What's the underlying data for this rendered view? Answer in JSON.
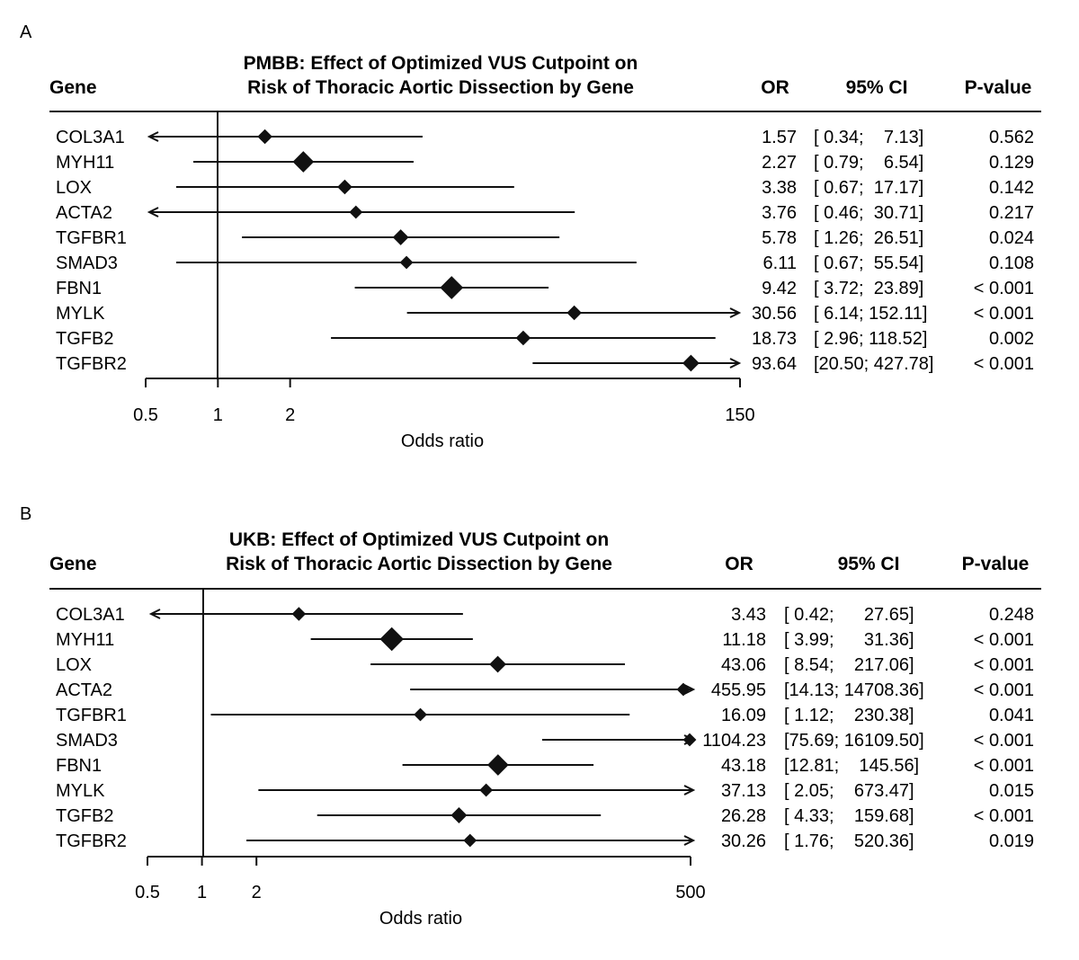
{
  "chart_data": [
    {
      "type": "forest",
      "panel": "A",
      "title_line1": "PMBB: Effect of Optimized VUS Cutpoint on",
      "title_line2": "Risk of Thoracic Aortic Dissection by Gene",
      "headers": {
        "gene": "Gene",
        "or": "OR",
        "ci": "95% CI",
        "p": "P-value"
      },
      "xlabel": "Odds ratio",
      "xscale": "log",
      "xlim": [
        0.5,
        150
      ],
      "ticks": [
        {
          "value": 0.5,
          "label": "0.5"
        },
        {
          "value": 1,
          "label": "1"
        },
        {
          "value": 2,
          "label": "2"
        },
        {
          "value": 150,
          "label": "150"
        }
      ],
      "rows": [
        {
          "gene": "COL3A1",
          "or": 1.57,
          "lo": 0.34,
          "hi": 7.13,
          "weight": 0.3,
          "or_text": "1.57",
          "ci_text": "[ 0.34;    7.13]",
          "p_text": "0.562"
        },
        {
          "gene": "MYH11",
          "or": 2.27,
          "lo": 0.79,
          "hi": 6.54,
          "weight": 0.62,
          "or_text": "2.27",
          "ci_text": "[ 0.79;    6.54]",
          "p_text": "0.129"
        },
        {
          "gene": "LOX",
          "or": 3.38,
          "lo": 0.67,
          "hi": 17.17,
          "weight": 0.3,
          "or_text": "3.38",
          "ci_text": "[ 0.67;  17.17]",
          "p_text": "0.142"
        },
        {
          "gene": "ACTA2",
          "or": 3.76,
          "lo": 0.46,
          "hi": 30.71,
          "weight": 0.22,
          "or_text": "3.76",
          "ci_text": "[ 0.46;  30.71]",
          "p_text": "0.217"
        },
        {
          "gene": "TGFBR1",
          "or": 5.78,
          "lo": 1.26,
          "hi": 26.51,
          "weight": 0.35,
          "or_text": "5.78",
          "ci_text": "[ 1.26;  26.51]",
          "p_text": "0.024"
        },
        {
          "gene": "SMAD3",
          "or": 6.11,
          "lo": 0.67,
          "hi": 55.54,
          "weight": 0.22,
          "or_text": "6.11",
          "ci_text": "[ 0.67;  55.54]",
          "p_text": "0.108"
        },
        {
          "gene": "FBN1",
          "or": 9.42,
          "lo": 3.72,
          "hi": 23.89,
          "weight": 0.72,
          "or_text": "9.42",
          "ci_text": "[ 3.72;  23.89]",
          "p_text": "< 0.001"
        },
        {
          "gene": "MYLK",
          "or": 30.56,
          "lo": 6.14,
          "hi": 152.11,
          "weight": 0.3,
          "or_text": "30.56",
          "ci_text": "[ 6.14; 152.11]",
          "p_text": "< 0.001"
        },
        {
          "gene": "TGFB2",
          "or": 18.73,
          "lo": 2.96,
          "hi": 118.52,
          "weight": 0.3,
          "or_text": "18.73",
          "ci_text": "[ 2.96; 118.52]",
          "p_text": "0.002"
        },
        {
          "gene": "TGFBR2",
          "or": 93.64,
          "lo": 20.5,
          "hi": 427.78,
          "weight": 0.4,
          "or_text": "93.64",
          "ci_text": "[20.50; 427.78]",
          "p_text": "< 0.001"
        }
      ]
    },
    {
      "type": "forest",
      "panel": "B",
      "title_line1": "UKB: Effect of Optimized VUS Cutpoint on",
      "title_line2": "Risk of Thoracic Aortic Dissection by Gene",
      "headers": {
        "gene": "Gene",
        "or": "OR",
        "ci": "95% CI",
        "p": "P-value"
      },
      "xlabel": "Odds ratio",
      "xscale": "log",
      "xlim": [
        0.5,
        500
      ],
      "ticks": [
        {
          "value": 0.5,
          "label": "0.5"
        },
        {
          "value": 1,
          "label": "1"
        },
        {
          "value": 2,
          "label": "2"
        },
        {
          "value": 500,
          "label": "500"
        }
      ],
      "rows": [
        {
          "gene": "COL3A1",
          "or": 3.43,
          "lo": 0.42,
          "hi": 27.65,
          "weight": 0.25,
          "or_text": "3.43",
          "ci_text": "[ 0.42;      27.65]",
          "p_text": "0.248"
        },
        {
          "gene": "MYH11",
          "or": 11.18,
          "lo": 3.99,
          "hi": 31.36,
          "weight": 0.75,
          "or_text": "11.18",
          "ci_text": "[ 3.99;      31.36]",
          "p_text": "< 0.001"
        },
        {
          "gene": "LOX",
          "or": 43.06,
          "lo": 8.54,
          "hi": 217.06,
          "weight": 0.4,
          "or_text": "43.06",
          "ci_text": "[ 8.54;    217.06]",
          "p_text": "< 0.001"
        },
        {
          "gene": "ACTA2",
          "or": 455.95,
          "lo": 14.13,
          "hi": 14708.36,
          "weight": 0.22,
          "or_text": "455.95",
          "ci_text": "[14.13; 14708.36]",
          "p_text": "< 0.001"
        },
        {
          "gene": "TGFBR1",
          "or": 16.09,
          "lo": 1.12,
          "hi": 230.38,
          "weight": 0.22,
          "or_text": "16.09",
          "ci_text": "[ 1.12;    230.38]",
          "p_text": "0.041"
        },
        {
          "gene": "SMAD3",
          "or": 1104.23,
          "lo": 75.69,
          "hi": 16109.5,
          "weight": 0.22,
          "or_text": "1104.23",
          "ci_text": "[75.69; 16109.50]",
          "p_text": "< 0.001"
        },
        {
          "gene": "FBN1",
          "or": 43.18,
          "lo": 12.81,
          "hi": 145.56,
          "weight": 0.62,
          "or_text": "43.18",
          "ci_text": "[12.81;    145.56]",
          "p_text": "< 0.001"
        },
        {
          "gene": "MYLK",
          "or": 37.13,
          "lo": 2.05,
          "hi": 673.47,
          "weight": 0.22,
          "or_text": "37.13",
          "ci_text": "[ 2.05;    673.47]",
          "p_text": "0.015"
        },
        {
          "gene": "TGFB2",
          "or": 26.28,
          "lo": 4.33,
          "hi": 159.68,
          "weight": 0.36,
          "or_text": "26.28",
          "ci_text": "[ 4.33;    159.68]",
          "p_text": "< 0.001"
        },
        {
          "gene": "TGFBR2",
          "or": 30.26,
          "lo": 1.76,
          "hi": 520.36,
          "weight": 0.22,
          "or_text": "30.26",
          "ci_text": "[ 1.76;    520.36]",
          "p_text": "0.019"
        }
      ]
    }
  ]
}
